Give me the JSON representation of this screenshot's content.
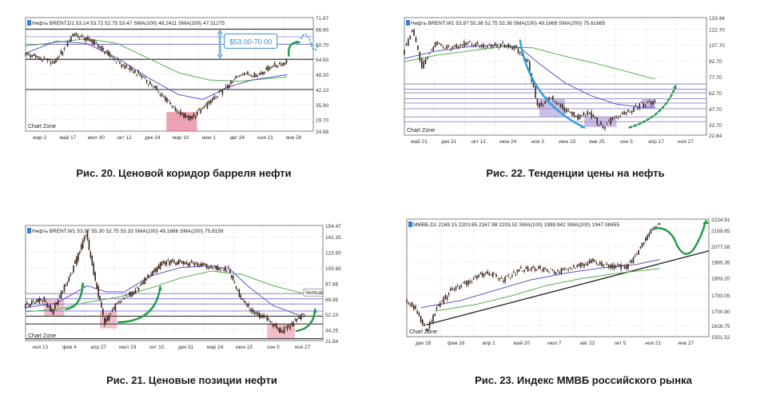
{
  "captions": {
    "fig20": "Рис. 20. Ценовой коридор барреля нефти",
    "fig22": "Рис. 22. Тенденции цены на нефть",
    "fig21": "Рис. 21. Ценовые позиции нефти",
    "fig23": "Рис. 23. Индекс ММВБ российского рынка"
  },
  "chart_data": [
    {
      "id": "fig20",
      "type": "line",
      "header": [
        "Нефть BRENT,D1",
        "53.14",
        "53.72",
        "52.75",
        "53.47",
        "SMA(100)",
        "48.2411",
        "SMA(200)",
        "47.31275"
      ],
      "watermark": "Chart Zone",
      "x_ticks": [
        "мар 2",
        "май 17",
        "июл 30",
        "окт 12",
        "дек 24",
        "мар 10",
        "июн 1",
        "авг 24",
        "ноя 21",
        "янв 28"
      ],
      "y_ticks": [
        71.67,
        66.9,
        60.7,
        54.5,
        48.3,
        42.1,
        35.9,
        29.7,
        24.98
      ],
      "ylim": [
        24.98,
        71.67
      ],
      "price_path": [
        [
          0,
          57
        ],
        [
          0.5,
          55
        ],
        [
          1,
          53
        ],
        [
          1.6,
          65
        ],
        [
          2.2,
          62
        ],
        [
          2.6,
          58
        ],
        [
          3.2,
          52
        ],
        [
          3.8,
          48
        ],
        [
          4.4,
          41
        ],
        [
          5.0,
          33
        ],
        [
          5.4,
          30
        ],
        [
          6.0,
          36
        ],
        [
          6.6,
          43
        ],
        [
          7.1,
          49
        ],
        [
          7.6,
          48
        ],
        [
          8.1,
          52
        ],
        [
          8.4,
          52.5
        ],
        [
          8.55,
          53.5
        ]
      ],
      "sma100_path": [
        [
          0,
          57
        ],
        [
          1,
          62
        ],
        [
          2,
          61
        ],
        [
          3,
          55
        ],
        [
          4,
          47
        ],
        [
          5,
          40
        ],
        [
          5.8,
          38
        ],
        [
          6.6,
          43
        ],
        [
          7.4,
          46
        ],
        [
          8.55,
          48.2
        ]
      ],
      "sma200_path": [
        [
          0,
          60
        ],
        [
          2,
          63
        ],
        [
          3,
          61
        ],
        [
          4,
          55
        ],
        [
          5,
          49
        ],
        [
          6,
          46
        ],
        [
          7,
          45.5
        ],
        [
          8.55,
          47.3
        ]
      ],
      "hlines": [
        {
          "y": 66.9,
          "color": "#3a3a3a"
        },
        {
          "y": 60.7,
          "color": "#7a6fc8"
        },
        {
          "y": 54.5,
          "color": "#3a3a3a"
        },
        {
          "y": 42.1,
          "color": "#3a3a3a"
        },
        {
          "y": 63.8,
          "color": "#9c93d6"
        }
      ],
      "zones": [
        {
          "x": [
            4.6,
            5.6
          ],
          "y": [
            24.98,
            32.8
          ],
          "color": "#e05a7a"
        }
      ],
      "annotations": [
        {
          "text": "$53.00-70.00",
          "x": 6.6,
          "y": 60.7
        }
      ],
      "colors": {
        "price": "#3b2418",
        "sma100": "#5b55c8",
        "sma200": "#52b04f",
        "arrow": "#1f9a4a",
        "dotted": "#2ea0d8",
        "label_box": "#3b8fd0"
      }
    },
    {
      "id": "fig22",
      "type": "line",
      "header": [
        "Нефть BRENT,W1",
        "53.97",
        "55.38",
        "52.75",
        "53.36",
        "SMA(100)",
        "49.1669",
        "SMA(200)",
        "75.61685"
      ],
      "watermark": "Chart Zone",
      "x_ticks": [
        "май 21",
        "дек 31",
        "окт 12",
        "июн 24",
        "ноя 3",
        "июн 15",
        "янв 25",
        "сен 5",
        "апр 17",
        "ноя 27"
      ],
      "y_ticks": [
        133.44,
        122.7,
        107.7,
        92.7,
        77.7,
        62.7,
        47.7,
        32.7,
        22.84
      ],
      "ylim": [
        22.84,
        133.44
      ],
      "price_path": [
        [
          0,
          100
        ],
        [
          0.3,
          123
        ],
        [
          0.6,
          88
        ],
        [
          1.0,
          110
        ],
        [
          1.5,
          105
        ],
        [
          2,
          110
        ],
        [
          2.5,
          106
        ],
        [
          3,
          108
        ],
        [
          3.5,
          105
        ],
        [
          3.9,
          90
        ],
        [
          4.2,
          50
        ],
        [
          4.6,
          58
        ],
        [
          5.0,
          48
        ],
        [
          5.4,
          40
        ],
        [
          5.8,
          44
        ],
        [
          6.2,
          30
        ],
        [
          6.6,
          40
        ],
        [
          7.0,
          45
        ],
        [
          7.4,
          52
        ],
        [
          7.8,
          53.5
        ]
      ],
      "sma100_path": [
        [
          0,
          95
        ],
        [
          1,
          102
        ],
        [
          2,
          106
        ],
        [
          3,
          108
        ],
        [
          3.6,
          105
        ],
        [
          4.2,
          90
        ],
        [
          5,
          72
        ],
        [
          5.8,
          60
        ],
        [
          6.6,
          52
        ],
        [
          7.4,
          49
        ],
        [
          7.8,
          49.2
        ]
      ],
      "sma200_path": [
        [
          0,
          92
        ],
        [
          1,
          98
        ],
        [
          2,
          102
        ],
        [
          3,
          106
        ],
        [
          4,
          105
        ],
        [
          5,
          97
        ],
        [
          6,
          90
        ],
        [
          7,
          82
        ],
        [
          7.8,
          75.6
        ]
      ],
      "hlines": [
        {
          "y": 71.0
        },
        {
          "y": 66.0
        },
        {
          "y": 62.7
        },
        {
          "y": 57.0
        },
        {
          "y": 53.0
        },
        {
          "y": 47.7
        },
        {
          "y": 40.0
        },
        {
          "y": 35.5
        }
      ],
      "zones": [
        {
          "x": [
            4.2,
            5.0
          ],
          "y": [
            40,
            57
          ],
          "color": "#a08cd0"
        },
        {
          "x": [
            5.6,
            6.6
          ],
          "y": [
            30.5,
            40
          ],
          "color": "#a08cd0"
        },
        {
          "x": [
            7.4,
            7.8
          ],
          "y": [
            47.7,
            57
          ],
          "color": "#a08cd0"
        }
      ],
      "colors": {
        "price": "#3b2418",
        "sma100": "#5b55c8",
        "sma200": "#52b04f",
        "arrow_down": "#2ea0d8",
        "arrow_up": "#1f9a4a",
        "hline": "#8d80c8"
      }
    },
    {
      "id": "fig21",
      "type": "line",
      "header": [
        "Нефть BRENT,W1",
        "53.97",
        "55.30",
        "52.75",
        "53.33",
        "SMA(100)",
        "49.1666",
        "SMA(200)",
        "75.8159"
      ],
      "watermark": "Chart Zone",
      "vertical_label": "Verticall",
      "x_ticks": [
        "ноя 13",
        "фев 4",
        "апр 27",
        "июл 19",
        "окт 10",
        "дек 31",
        "мар 24",
        "июн 15",
        "сен 5",
        "ноя 27"
      ],
      "y_ticks": [
        154.47,
        141.35,
        123.5,
        105.65,
        87.88,
        69.95,
        52.1,
        34.25,
        21.84
      ],
      "ylim": [
        21.84,
        154.47
      ],
      "price_path": [
        [
          0,
          62
        ],
        [
          0.6,
          70
        ],
        [
          0.9,
          55
        ],
        [
          1.5,
          98
        ],
        [
          2.0,
          145
        ],
        [
          2.3,
          90
        ],
        [
          2.6,
          42
        ],
        [
          3.0,
          65
        ],
        [
          3.6,
          80
        ],
        [
          4.0,
          96
        ],
        [
          4.5,
          112
        ],
        [
          5,
          112
        ],
        [
          5.5,
          110
        ],
        [
          6.0,
          107
        ],
        [
          6.6,
          104
        ],
        [
          7.0,
          70
        ],
        [
          7.4,
          52
        ],
        [
          7.8,
          48
        ],
        [
          8.3,
          32
        ],
        [
          8.6,
          40
        ],
        [
          9.0,
          52
        ]
      ],
      "sma100_path": [
        [
          0,
          60
        ],
        [
          1,
          65
        ],
        [
          2,
          85
        ],
        [
          2.6,
          78
        ],
        [
          3.2,
          78
        ],
        [
          4,
          96
        ],
        [
          5,
          106
        ],
        [
          6,
          108
        ],
        [
          6.6,
          104
        ],
        [
          7.2,
          84
        ],
        [
          8,
          62
        ],
        [
          9,
          49
        ]
      ],
      "sma200_path": [
        [
          0,
          55
        ],
        [
          1,
          58
        ],
        [
          2,
          66
        ],
        [
          3,
          72
        ],
        [
          4,
          82
        ],
        [
          5,
          94
        ],
        [
          6,
          102
        ],
        [
          7,
          98
        ],
        [
          8,
          85
        ],
        [
          9,
          76
        ]
      ],
      "hlines": [
        {
          "y": 76,
          "color": "#7a6fc8"
        },
        {
          "y": 70,
          "color": "#7a6fc8"
        },
        {
          "y": 64,
          "color": "#7a6fc8"
        },
        {
          "y": 56,
          "color": "#7a6fc8"
        },
        {
          "y": 50,
          "color": "#3a3a3a"
        },
        {
          "y": 41,
          "color": "#3a3a3a"
        },
        {
          "y": 24,
          "color": "#3a3a3a"
        }
      ],
      "zones": [
        {
          "x": [
            0.6,
            1.25
          ],
          "y": [
            50,
            70
          ],
          "color": "#e58aa3"
        },
        {
          "x": [
            2.4,
            2.95
          ],
          "y": [
            36,
            56
          ],
          "color": "#e58aa3"
        },
        {
          "x": [
            7.8,
            8.7
          ],
          "y": [
            24,
            41
          ],
          "color": "#e58aa3"
        }
      ],
      "colors": {
        "price": "#3b2418",
        "sma100": "#5b55c8",
        "sma200": "#52b04f",
        "arrow": "#1f9a4a"
      }
    },
    {
      "id": "fig23",
      "type": "line",
      "header": [
        "ММВБ,D1",
        "2169.15",
        "2203.85",
        "2167.98",
        "2203.52",
        "SMA(100)",
        "1999.942",
        "SMA(200)",
        "1947.08455"
      ],
      "watermark": "Chart Zone",
      "x_ticks": [
        "дек 28",
        "фев 16",
        "апр 1",
        "май 20",
        "июл 7",
        "авг 22",
        "окт 5",
        "ноя 21",
        "янв 27"
      ],
      "y_ticks": [
        2234.91,
        2169.65,
        2077.58,
        1985.35,
        1893.2,
        1793.05,
        1700.9,
        1616.75,
        1551.52
      ],
      "ylim": [
        1551.52,
        2234.91
      ],
      "price_path": [
        [
          0,
          1760
        ],
        [
          0.3,
          1710
        ],
        [
          0.6,
          1580
        ],
        [
          0.9,
          1720
        ],
        [
          1.3,
          1820
        ],
        [
          1.8,
          1870
        ],
        [
          2.3,
          1930
        ],
        [
          2.8,
          1880
        ],
        [
          3.3,
          1945
        ],
        [
          3.8,
          1950
        ],
        [
          4.3,
          1930
        ],
        [
          4.8,
          1955
        ],
        [
          5.3,
          1990
        ],
        [
          5.8,
          1960
        ],
        [
          6.3,
          1955
        ],
        [
          6.6,
          2040
        ],
        [
          7.0,
          2175
        ],
        [
          7.2,
          2203
        ]
      ],
      "sma100_path": [
        [
          0.4,
          1720
        ],
        [
          1.5,
          1760
        ],
        [
          2.5,
          1820
        ],
        [
          3.5,
          1880
        ],
        [
          4.5,
          1920
        ],
        [
          5.5,
          1950
        ],
        [
          6.5,
          1970
        ],
        [
          7.2,
          2000
        ]
      ],
      "sma200_path": [
        [
          0.8,
          1700
        ],
        [
          2,
          1740
        ],
        [
          3,
          1790
        ],
        [
          4,
          1850
        ],
        [
          5,
          1890
        ],
        [
          6,
          1920
        ],
        [
          7.2,
          1947
        ]
      ],
      "trendline": [
        [
          0.55,
          1620
        ],
        [
          8.6,
          2050
        ]
      ],
      "colors": {
        "price": "#3b2418",
        "sma100": "#5b55c8",
        "sma200": "#52b04f",
        "trend": "#222222",
        "arrow": "#1f9a4a"
      }
    }
  ]
}
